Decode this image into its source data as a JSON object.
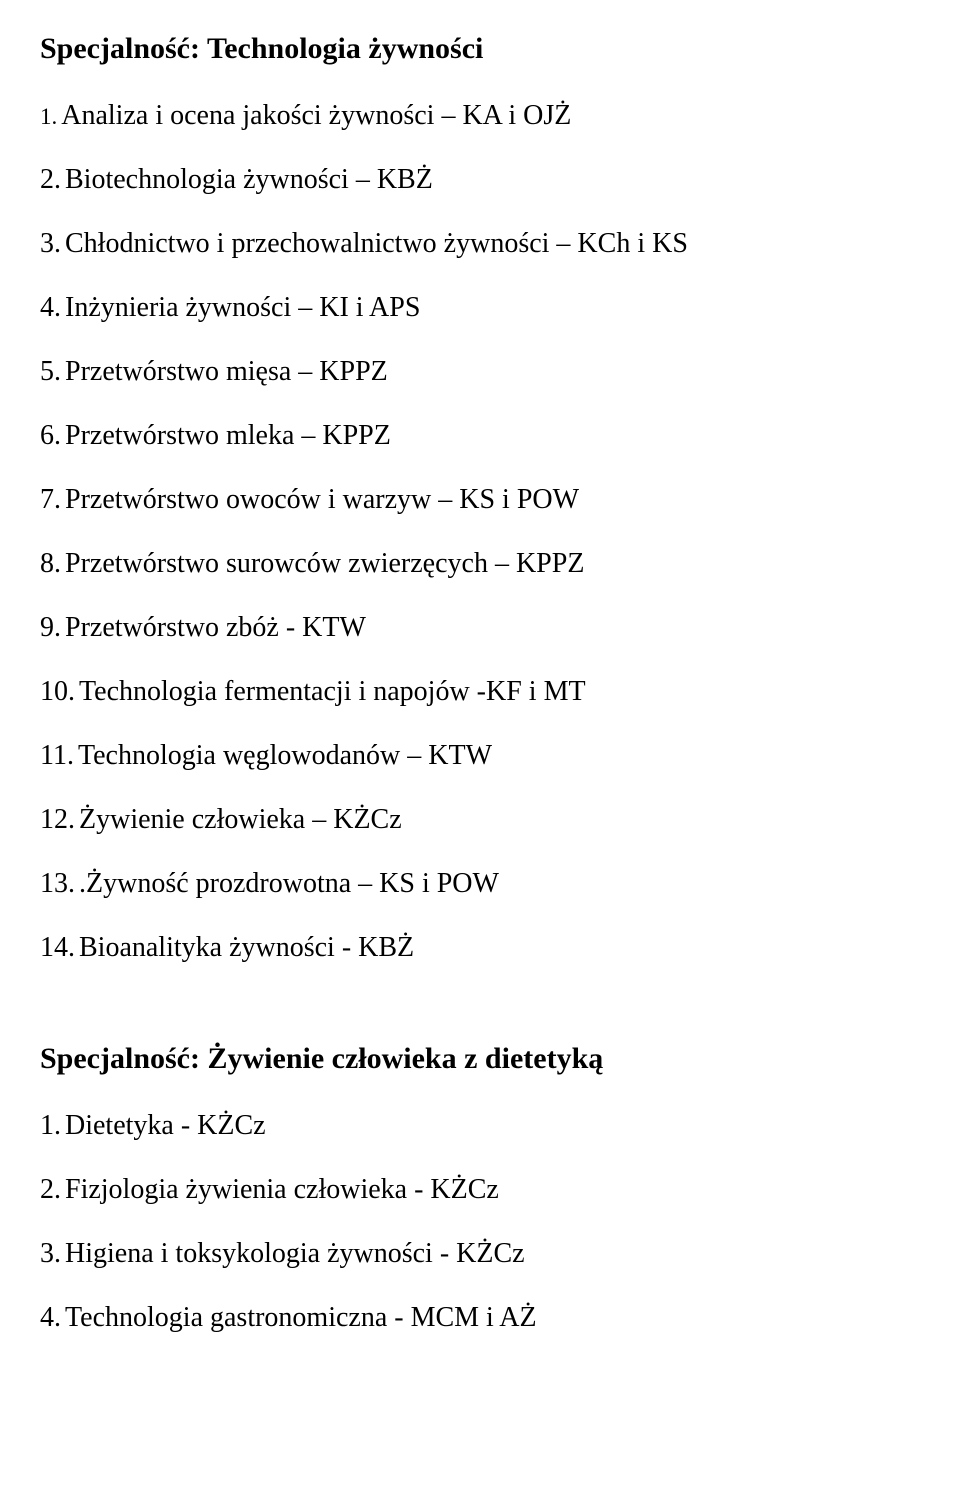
{
  "section1": {
    "heading": "Specjalność: Technologia żywności",
    "items": [
      {
        "num": "1.",
        "text": "Analiza i ocena jakości żywności – KA i OJŻ",
        "first": true
      },
      {
        "num": "2.",
        "text": "Biotechnologia żywności – KBŻ"
      },
      {
        "num": "3.",
        "text": "Chłodnictwo  i przechowalnictwo żywności – KCh i KS"
      },
      {
        "num": "4.",
        "text": "Inżynieria żywności – KI i APS"
      },
      {
        "num": "5.",
        "text": "Przetwórstwo mięsa – KPPZ"
      },
      {
        "num": "6.",
        "text": "Przetwórstwo mleka – KPPZ"
      },
      {
        "num": "7.",
        "text": "Przetwórstwo owoców i warzyw – KS i POW"
      },
      {
        "num": "8.",
        "text": "Przetwórstwo surowców zwierzęcych – KPPZ"
      },
      {
        "num": "9.",
        "text": "Przetwórstwo zbóż - KTW"
      },
      {
        "num": "10.",
        "text": "Technologia fermentacji i napojów  -KF i MT"
      },
      {
        "num": "11.",
        "text": "Technologia węglowodanów – KTW"
      },
      {
        "num": "12.",
        "text": "Żywienie człowieka – KŻCz"
      },
      {
        "num": "13.",
        "text": ".Żywność prozdrowotna – KS i POW"
      },
      {
        "num": "14.",
        "text": "Bioanalityka żywności - KBŻ"
      }
    ]
  },
  "section2": {
    "heading": "Specjalność:  Żywienie człowieka z dietetyką",
    "items": [
      {
        "num": "1.",
        "text": "Dietetyka - KŻCz"
      },
      {
        "num": "2.",
        "text": "Fizjologia żywienia człowieka -  KŻCz"
      },
      {
        "num": "3.",
        "text": "Higiena i toksykologia żywności  - KŻCz"
      },
      {
        "num": "4.",
        "text": "Technologia gastronomiczna  - MCM i AŻ"
      }
    ]
  }
}
